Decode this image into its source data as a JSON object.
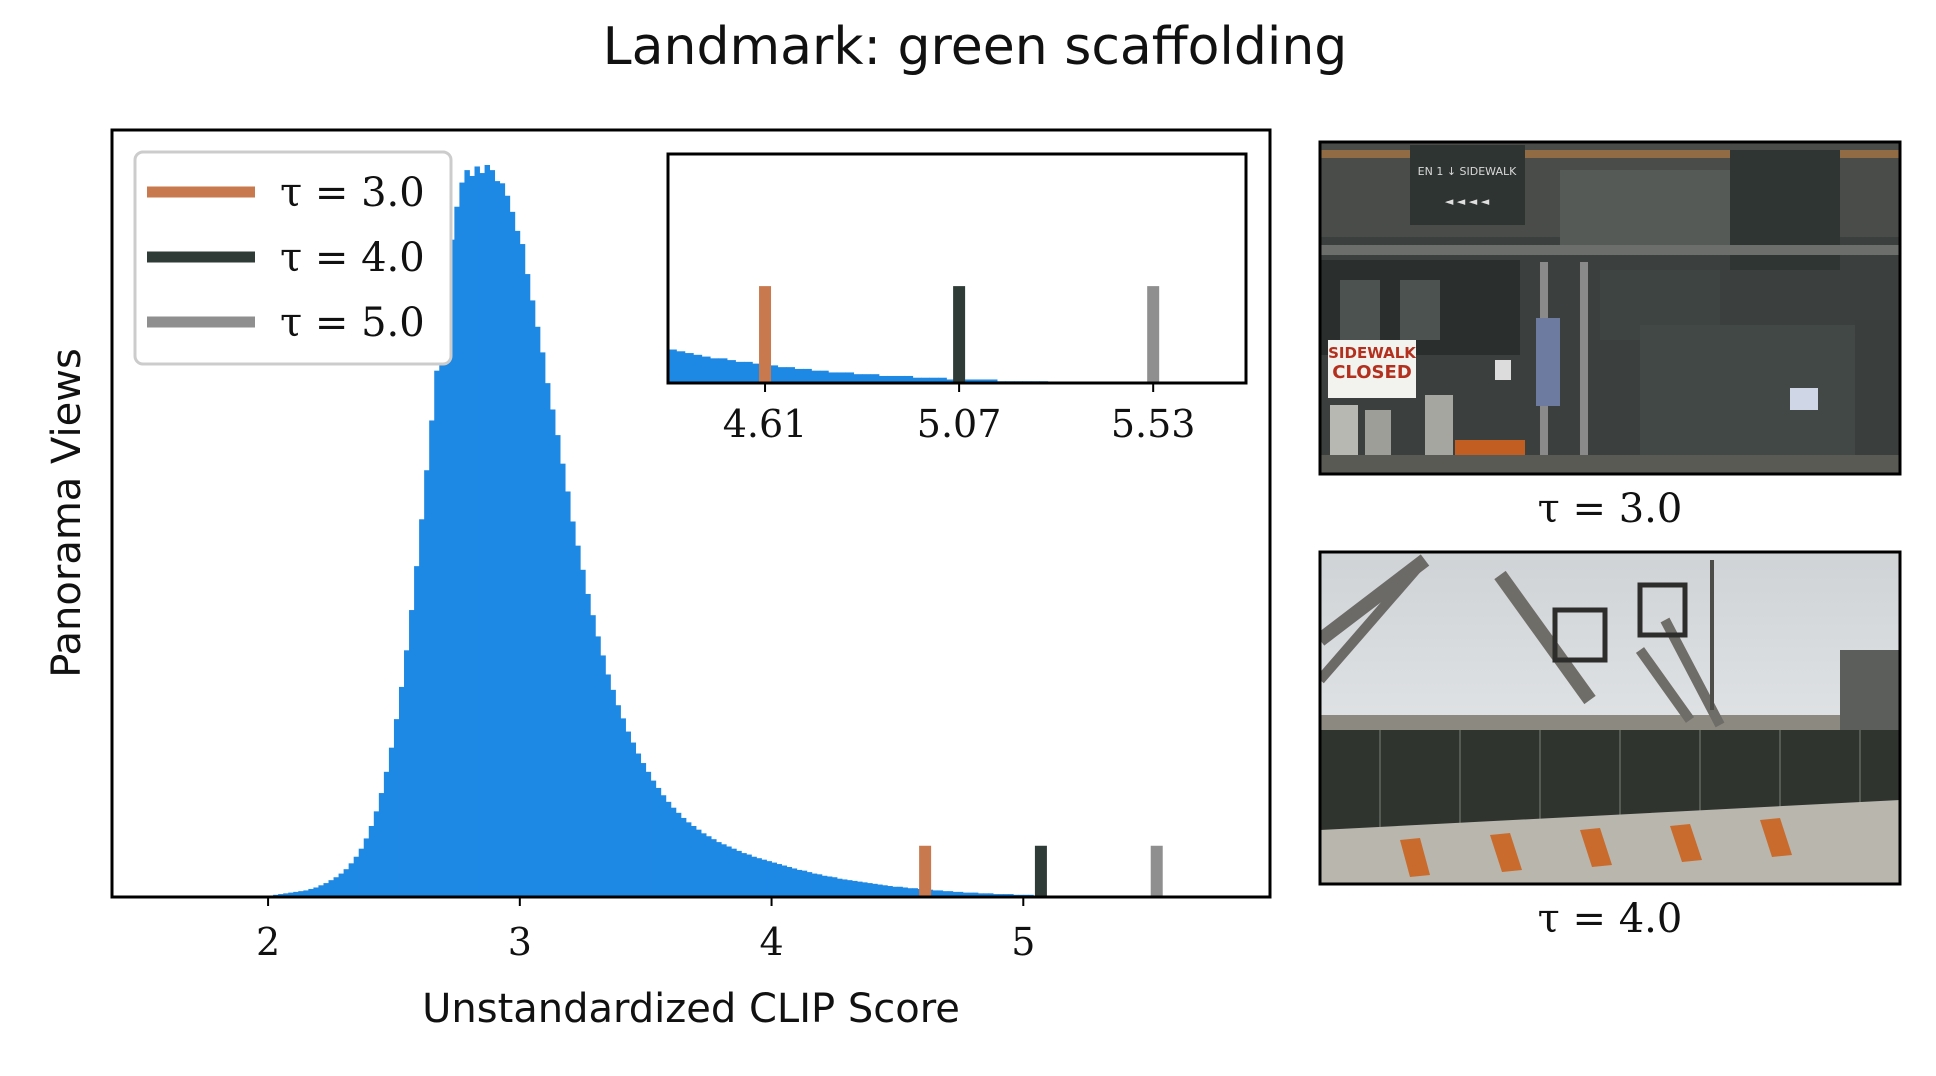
{
  "chart_data": {
    "type": "histogram",
    "title": "Landmark: green scaffolding",
    "xlabel": "Unstandardized CLIP Score",
    "ylabel": "Panorama Views",
    "xlim": [
      1.38,
      5.98
    ],
    "ylim": [
      0,
      1.0
    ],
    "y_ticks_shown": false,
    "xticks": [
      2,
      3,
      4,
      5
    ],
    "grid": false,
    "bar_color": "#1e88e5",
    "bin_start": 1.96,
    "bin_width": 0.02,
    "bin_heights": [
      0.001,
      0.002,
      0.002,
      0.003,
      0.004,
      0.005,
      0.006,
      0.007,
      0.008,
      0.009,
      0.011,
      0.013,
      0.016,
      0.019,
      0.023,
      0.027,
      0.032,
      0.038,
      0.046,
      0.055,
      0.066,
      0.08,
      0.097,
      0.117,
      0.142,
      0.171,
      0.204,
      0.243,
      0.287,
      0.337,
      0.392,
      0.452,
      0.516,
      0.583,
      0.651,
      0.719,
      0.785,
      0.845,
      0.898,
      0.943,
      0.976,
      0.993,
      0.985,
      0.998,
      0.989,
      1.0,
      0.993,
      0.978,
      0.975,
      0.958,
      0.936,
      0.91,
      0.892,
      0.851,
      0.815,
      0.779,
      0.744,
      0.702,
      0.666,
      0.631,
      0.592,
      0.554,
      0.513,
      0.48,
      0.447,
      0.414,
      0.385,
      0.356,
      0.33,
      0.304,
      0.283,
      0.262,
      0.244,
      0.226,
      0.211,
      0.196,
      0.183,
      0.171,
      0.159,
      0.149,
      0.139,
      0.13,
      0.122,
      0.115,
      0.108,
      0.102,
      0.097,
      0.092,
      0.087,
      0.083,
      0.079,
      0.075,
      0.072,
      0.069,
      0.066,
      0.063,
      0.06,
      0.058,
      0.055,
      0.053,
      0.051,
      0.049,
      0.047,
      0.045,
      0.043,
      0.041,
      0.039,
      0.037,
      0.036,
      0.034,
      0.032,
      0.031,
      0.029,
      0.028,
      0.027,
      0.025,
      0.024,
      0.023,
      0.022,
      0.021,
      0.02,
      0.019,
      0.018,
      0.017,
      0.016,
      0.015,
      0.014,
      0.014,
      0.013,
      0.012,
      0.012,
      0.011,
      0.01,
      0.01,
      0.009,
      0.009,
      0.008,
      0.008,
      0.007,
      0.007,
      0.006,
      0.006,
      0.006,
      0.005,
      0.005,
      0.005,
      0.004,
      0.004,
      0.004,
      0.004,
      0.003,
      0.003,
      0.003,
      0.003,
      0.002,
      0.002,
      0.002,
      0.002,
      0.002,
      0.002,
      0.001,
      0.001,
      0.001,
      0.001,
      0.001,
      0.001
    ],
    "thresholds": [
      {
        "label": "τ = 3.0",
        "value": 4.61,
        "color": "#c8794e"
      },
      {
        "label": "τ = 4.0",
        "value": 5.07,
        "color": "#2f3b37"
      },
      {
        "label": "τ = 5.0",
        "value": 5.53,
        "color": "#8f8f8f"
      }
    ],
    "threshold_marker_height": 0.07,
    "legend_position": "top-left",
    "inset": {
      "xlim": [
        4.38,
        5.75
      ],
      "ylim": [
        0,
        0.13
      ],
      "xticks": [
        "4.61",
        "5.07",
        "5.53"
      ],
      "tick_values": [
        4.61,
        5.07,
        5.53
      ],
      "threshold_marker_height": 0.055
    }
  },
  "examples": [
    {
      "caption": "τ = 3.0",
      "scene": "storefront-scaffolding"
    },
    {
      "caption": "τ = 4.0",
      "scene": "boom-lifts-and-fence"
    }
  ],
  "sign_text": {
    "line1": "SIDEWALK",
    "line2": "CLOSED"
  }
}
